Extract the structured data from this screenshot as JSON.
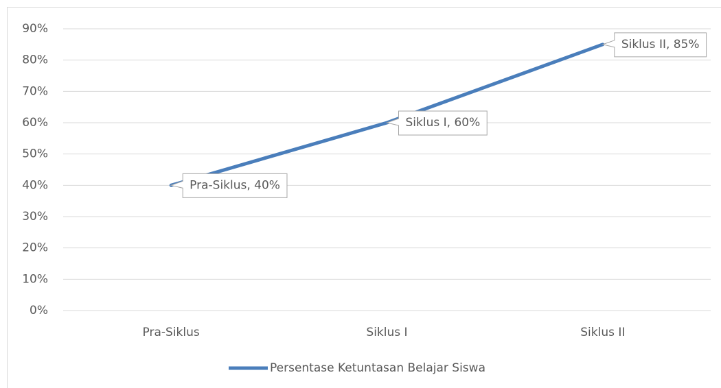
{
  "chart_data": {
    "type": "line",
    "categories": [
      "Pra-Siklus",
      "Siklus I",
      "Siklus II"
    ],
    "series": [
      {
        "name": "Persentase Ketuntasan Belajar Siswa",
        "color": "#4a7ebb",
        "values": [
          40,
          60,
          85
        ],
        "value_labels": [
          "Pra-Siklus, 40%",
          "Siklus I, 60%",
          "Siklus II, 85%"
        ]
      }
    ],
    "ylim": [
      0,
      90
    ],
    "yticks": [
      {
        "value": 0,
        "label": "0%"
      },
      {
        "value": 10,
        "label": "10%"
      },
      {
        "value": 20,
        "label": "20%"
      },
      {
        "value": 30,
        "label": "30%"
      },
      {
        "value": 40,
        "label": "40%"
      },
      {
        "value": 50,
        "label": "50%"
      },
      {
        "value": 60,
        "label": "60%"
      },
      {
        "value": 70,
        "label": "70%"
      },
      {
        "value": 80,
        "label": "80%"
      },
      {
        "value": 90,
        "label": "90%"
      }
    ],
    "grid": true,
    "legend": "bottom"
  }
}
